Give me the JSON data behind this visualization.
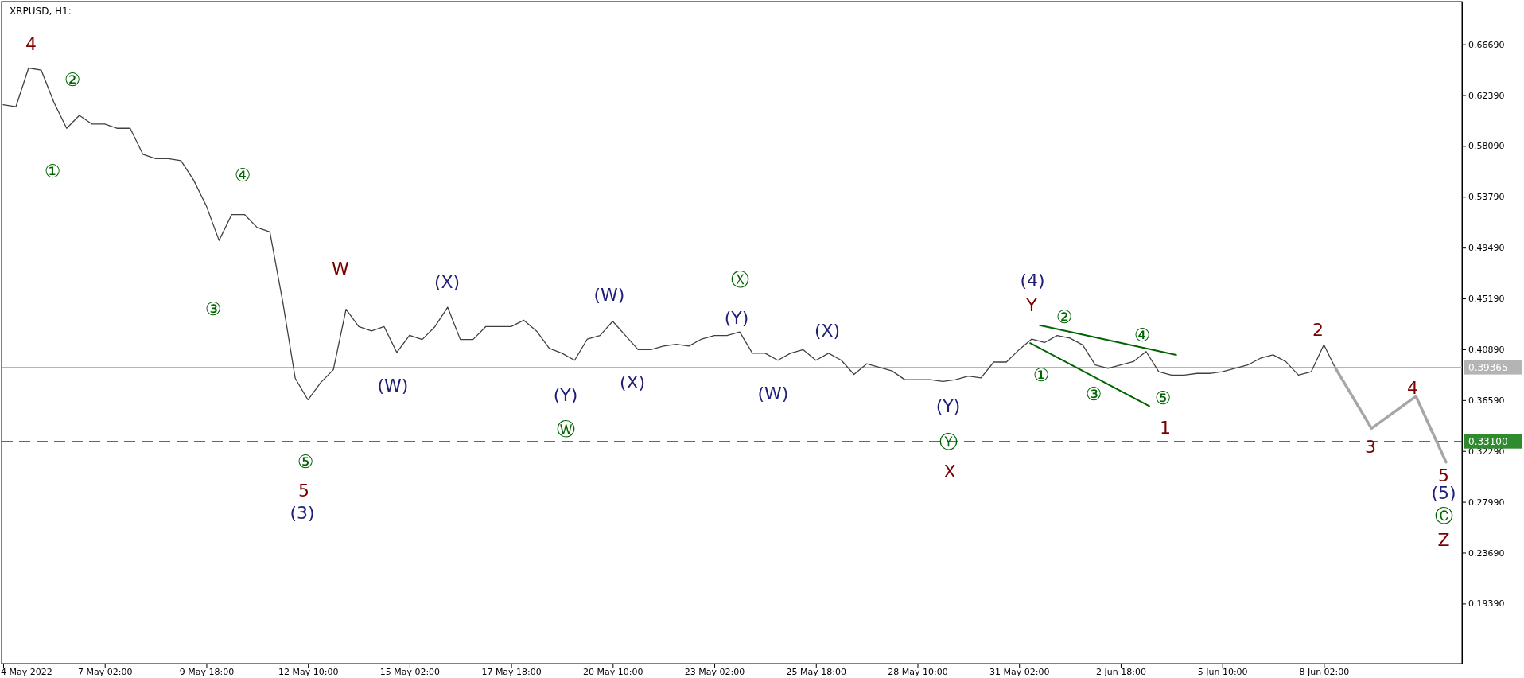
{
  "chart_data": {
    "type": "line",
    "title": "XRPUSD, H1:",
    "xlim": [
      "2022-05-04T09:00",
      "2022-06-11T17:00"
    ],
    "xticks": [
      {
        "value": "2022-05-04T10:00",
        "label": "4 May 2022"
      },
      {
        "value": "2022-05-07T02:00",
        "label": "7 May 02:00"
      },
      {
        "value": "2022-05-09T18:00",
        "label": "9 May 18:00"
      },
      {
        "value": "2022-05-12T10:00",
        "label": "12 May 10:00"
      },
      {
        "value": "2022-05-15T02:00",
        "label": "15 May 02:00"
      },
      {
        "value": "2022-05-17T18:00",
        "label": "17 May 18:00"
      },
      {
        "value": "2022-05-20T10:00",
        "label": "20 May 10:00"
      },
      {
        "value": "2022-05-23T02:00",
        "label": "23 May 02:00"
      },
      {
        "value": "2022-05-25T18:00",
        "label": "25 May 18:00"
      },
      {
        "value": "2022-05-28T10:00",
        "label": "28 May 10:00"
      },
      {
        "value": "2022-05-31T02:00",
        "label": "31 May 02:00"
      },
      {
        "value": "2022-06-02T18:00",
        "label": "2 Jun 18:00"
      },
      {
        "value": "2022-06-05T10:00",
        "label": "5 Jun 10:00"
      },
      {
        "value": "2022-06-08T02:00",
        "label": "8 Jun 02:00"
      }
    ],
    "ylim": [
      0.143,
      0.703
    ],
    "yticks": [
      {
        "value": 0.6669,
        "label": "0.66690"
      },
      {
        "value": 0.6239,
        "label": "0.62390"
      },
      {
        "value": 0.5809,
        "label": "0.58090"
      },
      {
        "value": 0.5379,
        "label": "0.53790"
      },
      {
        "value": 0.4949,
        "label": "0.49490"
      },
      {
        "value": 0.4519,
        "label": "0.45190"
      },
      {
        "value": 0.4089,
        "label": "0.40890"
      },
      {
        "value": 0.3659,
        "label": "0.36590"
      },
      {
        "value": 0.3229,
        "label": "0.32290"
      },
      {
        "value": 0.2799,
        "label": "0.27990"
      },
      {
        "value": 0.2369,
        "label": "0.23690"
      },
      {
        "value": 0.1939,
        "label": "0.19390"
      }
    ],
    "grid": false,
    "marker": "none",
    "series": [
      {
        "color": "#404040",
        "x": [
          "2022-05-04T10:00",
          "2022-05-04T18:00",
          "2022-05-05T02:00",
          "2022-05-05T10:00",
          "2022-05-05T18:00",
          "2022-05-06T02:00",
          "2022-05-06T10:00",
          "2022-05-06T18:00",
          "2022-05-07T02:00",
          "2022-05-07T10:00",
          "2022-05-07T18:00",
          "2022-05-08T02:00",
          "2022-05-08T10:00",
          "2022-05-08T18:00",
          "2022-05-09T02:00",
          "2022-05-09T10:00",
          "2022-05-09T18:00",
          "2022-05-10T02:00",
          "2022-05-10T10:00",
          "2022-05-10T18:00",
          "2022-05-11T02:00",
          "2022-05-11T10:00",
          "2022-05-11T18:00",
          "2022-05-12T02:00",
          "2022-05-12T10:00",
          "2022-05-12T18:00",
          "2022-05-13T02:00",
          "2022-05-13T10:00",
          "2022-05-13T18:00",
          "2022-05-14T02:00",
          "2022-05-14T10:00",
          "2022-05-14T18:00",
          "2022-05-15T02:00",
          "2022-05-15T10:00",
          "2022-05-15T18:00",
          "2022-05-16T02:00",
          "2022-05-16T10:00",
          "2022-05-16T18:00",
          "2022-05-17T02:00",
          "2022-05-17T10:00",
          "2022-05-17T18:00",
          "2022-05-18T02:00",
          "2022-05-18T10:00",
          "2022-05-18T18:00",
          "2022-05-19T02:00",
          "2022-05-19T10:00",
          "2022-05-19T18:00",
          "2022-05-20T02:00",
          "2022-05-20T10:00",
          "2022-05-20T18:00",
          "2022-05-21T02:00",
          "2022-05-21T10:00",
          "2022-05-21T18:00",
          "2022-05-22T02:00",
          "2022-05-22T10:00",
          "2022-05-22T18:00",
          "2022-05-23T02:00",
          "2022-05-23T10:00",
          "2022-05-23T18:00",
          "2022-05-24T02:00",
          "2022-05-24T10:00",
          "2022-05-24T18:00",
          "2022-05-25T02:00",
          "2022-05-25T10:00",
          "2022-05-25T18:00",
          "2022-05-26T02:00",
          "2022-05-26T10:00",
          "2022-05-26T18:00",
          "2022-05-27T02:00",
          "2022-05-27T10:00",
          "2022-05-27T18:00",
          "2022-05-28T02:00",
          "2022-05-28T10:00",
          "2022-05-28T18:00",
          "2022-05-29T02:00",
          "2022-05-29T10:00",
          "2022-05-29T18:00",
          "2022-05-30T02:00",
          "2022-05-30T10:00",
          "2022-05-30T18:00",
          "2022-05-31T02:00",
          "2022-05-31T10:00",
          "2022-05-31T18:00",
          "2022-06-01T02:00",
          "2022-06-01T10:00",
          "2022-06-01T18:00",
          "2022-06-02T02:00",
          "2022-06-02T10:00",
          "2022-06-02T18:00",
          "2022-06-03T02:00",
          "2022-06-03T10:00",
          "2022-06-03T18:00",
          "2022-06-04T02:00",
          "2022-06-04T10:00",
          "2022-06-04T18:00",
          "2022-06-05T02:00",
          "2022-06-05T10:00",
          "2022-06-05T18:00",
          "2022-06-06T02:00",
          "2022-06-06T10:00",
          "2022-06-06T18:00",
          "2022-06-07T02:00",
          "2022-06-07T10:00",
          "2022-06-07T18:00",
          "2022-06-08T02:00",
          "2022-06-08T09:00"
        ],
        "values": [
          0.6158,
          0.614,
          0.6468,
          0.645,
          0.6177,
          0.5958,
          0.6067,
          0.5994,
          0.5994,
          0.5958,
          0.5958,
          0.5739,
          0.5702,
          0.5702,
          0.5684,
          0.552,
          0.5301,
          0.501,
          0.5229,
          0.5229,
          0.5119,
          0.5083,
          0.45,
          0.3843,
          0.3661,
          0.3807,
          0.3916,
          0.4427,
          0.4281,
          0.4244,
          0.4281,
          0.4062,
          0.4208,
          0.4172,
          0.4281,
          0.4445,
          0.4172,
          0.4172,
          0.4281,
          0.4281,
          0.4281,
          0.4335,
          0.4244,
          0.4098,
          0.4056,
          0.3996,
          0.4176,
          0.4206,
          0.4326,
          0.4206,
          0.4086,
          0.4086,
          0.4116,
          0.4131,
          0.4116,
          0.4176,
          0.4206,
          0.4206,
          0.4236,
          0.4056,
          0.4056,
          0.3996,
          0.4056,
          0.4086,
          0.3996,
          0.4056,
          0.3996,
          0.3877,
          0.3966,
          0.3936,
          0.3906,
          0.3832,
          0.3832,
          0.3832,
          0.3817,
          0.3832,
          0.3862,
          0.3847,
          0.3981,
          0.3981,
          0.4086,
          0.4176,
          0.4146,
          0.4206,
          0.4184,
          0.4127,
          0.3956,
          0.3928,
          0.3956,
          0.3985,
          0.407,
          0.3899,
          0.3871,
          0.3871,
          0.3885,
          0.3885,
          0.3899,
          0.3928,
          0.3956,
          0.4013,
          0.4042,
          0.3985,
          0.3871,
          0.3899,
          0.4127,
          0.3937
        ]
      },
      {
        "color": "#a6a6a6",
        "x": [
          "2022-06-08T09:00",
          "2022-06-09T08:00",
          "2022-06-10T12:00",
          "2022-06-11T07:00"
        ],
        "values": [
          0.3937,
          0.342,
          0.3691,
          0.3135
        ]
      },
      {
        "color": "#006400",
        "x": [
          "2022-05-31T15:00",
          "2022-06-04T05:00"
        ],
        "values": [
          0.4292,
          0.4042
        ]
      },
      {
        "color": "#006400",
        "x": [
          "2022-05-31T09:00",
          "2022-06-03T12:00"
        ],
        "values": [
          0.4141,
          0.3608
        ]
      }
    ],
    "ref_lines": [
      {
        "axis": "y",
        "value": 0.39365,
        "label": "0.39365",
        "color": "#b4b4b4",
        "line_style": "solid"
      },
      {
        "axis": "y",
        "value": 0.331,
        "label": "0.33100",
        "color": "#2e8b2e",
        "line_style": "dashed"
      }
    ],
    "annotations": [
      "4",
      "②",
      "①",
      "④",
      "③",
      "W",
      "⑤",
      "5",
      "(3)",
      "(W)",
      "(X)",
      "(Y)",
      "Ⓦ",
      "(W)",
      "(X)",
      "Ⓧ",
      "(Y)",
      "(W)",
      "(X)",
      "(Y)",
      "Ⓨ",
      "X",
      "(4)",
      "Y",
      "②",
      "①",
      "③",
      "④",
      "⑤",
      "1",
      "2",
      "3",
      "4",
      "5",
      "(5)",
      "Ⓒ",
      "Z"
    ]
  }
}
